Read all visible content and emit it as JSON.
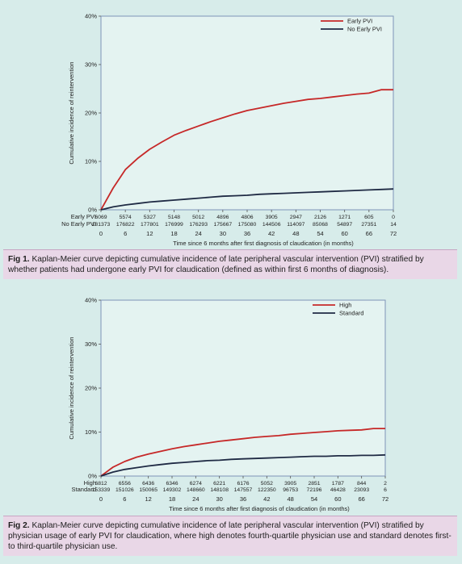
{
  "figures": [
    {
      "caption_label": "Fig 1.",
      "caption_text": "Kaplan-Meier curve depicting cumulative incidence of late peripheral vascular intervention (PVI) stratified by whether patients had undergone early PVI for claudication (defined as within first 6 months of diagnosis).",
      "xlabel": "Time since 6 months after first diagnosis of claudication (in months)",
      "ylabel": "Cumulative incidence of reintervention",
      "risk_labels": [
        "Early PVI",
        "No Early PVI"
      ],
      "risk_rows": [
        [
          "6069",
          "5574",
          "5327",
          "5148",
          "5012",
          "4896",
          "4806",
          "3905",
          "2947",
          "2126",
          "1271",
          "605",
          "0"
        ],
        [
          "181373",
          "176822",
          "177801",
          "176999",
          "176293",
          "175667",
          "175080",
          "144506",
          "114097",
          "85068",
          "54897",
          "27351",
          "14"
        ]
      ]
    },
    {
      "caption_label": "Fig 2.",
      "caption_text": "Kaplan-Meier curve depicting cumulative incidence of late peripheral vascular intervention (PVI) stratified by physician usage of early PVI for claudication, where high denotes fourth-quartile physician use and standard denotes first- to third-quartile physician use.",
      "xlabel": "Time since 6 months after first diagnosis of claudication (in months)",
      "ylabel": "Cumulative incidence of reintervention",
      "risk_labels": [
        "High",
        "Standard"
      ],
      "risk_rows": [
        [
          "6812",
          "6556",
          "6436",
          "6346",
          "6274",
          "6221",
          "6176",
          "5052",
          "3905",
          "2851",
          "1787",
          "844",
          "2"
        ],
        [
          "153339",
          "151026",
          "150065",
          "149302",
          "148660",
          "148108",
          "147557",
          "122350",
          "96753",
          "72196",
          "46428",
          "23093",
          "6"
        ]
      ]
    }
  ],
  "chart_data": [
    {
      "type": "line",
      "x": [
        0,
        3,
        6,
        9,
        12,
        15,
        18,
        21,
        24,
        27,
        30,
        33,
        36,
        39,
        42,
        45,
        48,
        51,
        54,
        57,
        60,
        63,
        66,
        69,
        72
      ],
      "x_ticks": [
        "0",
        "6",
        "12",
        "18",
        "24",
        "30",
        "36",
        "42",
        "48",
        "54",
        "60",
        "66",
        "72"
      ],
      "y_ticks": [
        "0%",
        "10%",
        "20%",
        "30%",
        "40%"
      ],
      "ylim": [
        0,
        40
      ],
      "xlim": [
        0,
        72
      ],
      "xlabel": "Time since 6 months after first diagnosis of claudication (in months)",
      "ylabel": "Cumulative incidence of reintervention",
      "legend_position": "top-right",
      "series": [
        {
          "name": "Early PVI",
          "color": "#c62828",
          "values": [
            0,
            4.5,
            8.3,
            10.6,
            12.5,
            14.0,
            15.4,
            16.4,
            17.3,
            18.2,
            19.0,
            19.8,
            20.5,
            21.0,
            21.5,
            22.0,
            22.4,
            22.8,
            23.0,
            23.3,
            23.6,
            23.9,
            24.1,
            24.8,
            24.8
          ]
        },
        {
          "name": "No Early PVI",
          "color": "#1f2a44",
          "values": [
            0,
            0.6,
            1.0,
            1.3,
            1.6,
            1.8,
            2.0,
            2.2,
            2.4,
            2.6,
            2.8,
            2.9,
            3.0,
            3.2,
            3.3,
            3.4,
            3.5,
            3.6,
            3.7,
            3.8,
            3.9,
            4.0,
            4.1,
            4.2,
            4.3
          ]
        }
      ]
    },
    {
      "type": "line",
      "x": [
        0,
        3,
        6,
        9,
        12,
        15,
        18,
        21,
        24,
        27,
        30,
        33,
        36,
        39,
        42,
        45,
        48,
        51,
        54,
        57,
        60,
        63,
        66,
        69,
        72
      ],
      "x_ticks": [
        "0",
        "6",
        "12",
        "18",
        "24",
        "30",
        "36",
        "42",
        "48",
        "54",
        "60",
        "66",
        "72"
      ],
      "y_ticks": [
        "0%",
        "10%",
        "20%",
        "30%",
        "40%"
      ],
      "ylim": [
        0,
        40
      ],
      "xlim": [
        0,
        72
      ],
      "xlabel": "Time since 6 months after first diagnosis of claudication (in months)",
      "ylabel": "Cumulative incidence of reintervention",
      "legend_position": "top-right",
      "series": [
        {
          "name": "High",
          "color": "#c62828",
          "values": [
            0,
            2.0,
            3.3,
            4.3,
            5.0,
            5.6,
            6.2,
            6.7,
            7.1,
            7.5,
            7.9,
            8.2,
            8.5,
            8.8,
            9.0,
            9.2,
            9.5,
            9.7,
            9.9,
            10.1,
            10.3,
            10.4,
            10.5,
            10.8,
            10.8
          ]
        },
        {
          "name": "Standard",
          "color": "#1f2a44",
          "values": [
            0,
            0.9,
            1.5,
            1.9,
            2.3,
            2.6,
            2.9,
            3.1,
            3.3,
            3.5,
            3.6,
            3.8,
            3.9,
            4.0,
            4.1,
            4.2,
            4.3,
            4.4,
            4.5,
            4.5,
            4.6,
            4.6,
            4.7,
            4.7,
            4.8
          ]
        }
      ]
    }
  ]
}
